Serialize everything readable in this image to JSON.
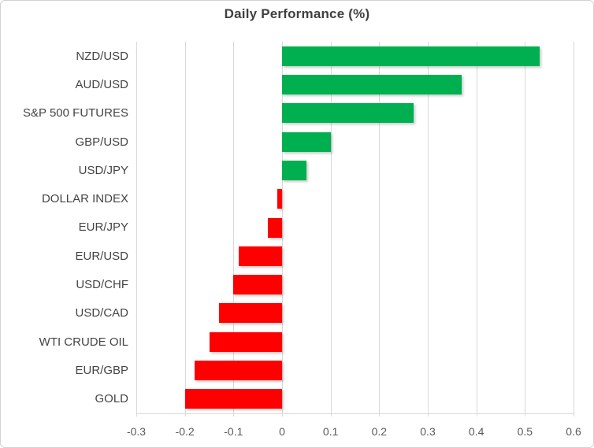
{
  "chart_data": {
    "type": "bar",
    "orientation": "horizontal",
    "title": "Daily Performance (%)",
    "categories": [
      "NZD/USD",
      "AUD/USD",
      "S&P 500 FUTURES",
      "GBP/USD",
      "USD/JPY",
      "DOLLAR INDEX",
      "EUR/JPY",
      "EUR/USD",
      "USD/CHF",
      "USD/CAD",
      "WTI CRUDE OIL",
      "EUR/GBP",
      "GOLD"
    ],
    "values": [
      0.53,
      0.37,
      0.27,
      0.1,
      0.05,
      -0.01,
      -0.03,
      -0.09,
      -0.1,
      -0.13,
      -0.15,
      -0.18,
      -0.2
    ],
    "xlabel": "",
    "ylabel": "",
    "xlim": [
      -0.3,
      0.6
    ],
    "xticks": [
      -0.3,
      -0.2,
      -0.1,
      0,
      0.1,
      0.2,
      0.3,
      0.4,
      0.5,
      0.6
    ],
    "xtick_labels": [
      "-0.3",
      "-0.2",
      "-0.1",
      "0",
      "0.1",
      "0.2",
      "0.3",
      "0.4",
      "0.5",
      "0.6"
    ],
    "grid": true,
    "legend": "none",
    "colors": {
      "positive_bar": "#00B050",
      "negative_bar": "#FF0000",
      "gridline": "#D9D9D9",
      "title_text": "#404040",
      "axis_label_text": "#595959",
      "category_label_text": "#444444",
      "background": "#FFFFFF"
    }
  }
}
